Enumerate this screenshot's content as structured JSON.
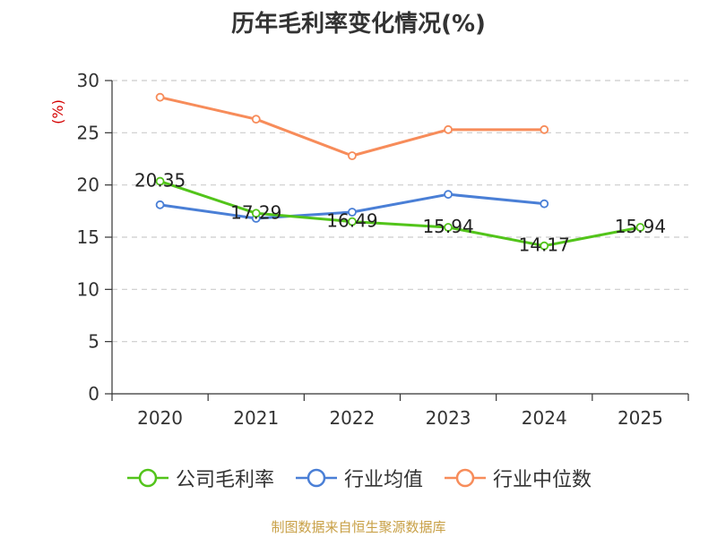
{
  "chart_data": {
    "type": "line",
    "title": "历年毛利率变化情况(%)",
    "ylabel": "(%)",
    "xlabel": "",
    "categories": [
      "2020",
      "2021",
      "2022",
      "2023",
      "2024",
      "2025"
    ],
    "ylim": [
      0,
      30
    ],
    "yticks": [
      0,
      5,
      10,
      15,
      20,
      25,
      30
    ],
    "grid": true,
    "legend_position": "bottom",
    "series": [
      {
        "name": "公司毛利率",
        "color": "#52c41a",
        "values": [
          20.35,
          17.29,
          16.49,
          15.94,
          14.17,
          15.94
        ],
        "labels": [
          "20.35",
          "17.29",
          "16.49",
          "15.94",
          "14.17",
          "15.94"
        ]
      },
      {
        "name": "行业均值",
        "color": "#4a7fd6",
        "values": [
          18.1,
          16.8,
          17.4,
          19.1,
          18.2,
          null
        ]
      },
      {
        "name": "行业中位数",
        "color": "#f78c5a",
        "values": [
          28.4,
          26.3,
          22.8,
          25.3,
          25.3,
          null
        ]
      }
    ]
  },
  "source": {
    "text": "制图数据来自恒生聚源数据库",
    "color": "#c8a046"
  },
  "colors": {
    "axis": "#333333",
    "grid": "#cccccc",
    "ylabel": "#d40000"
  }
}
